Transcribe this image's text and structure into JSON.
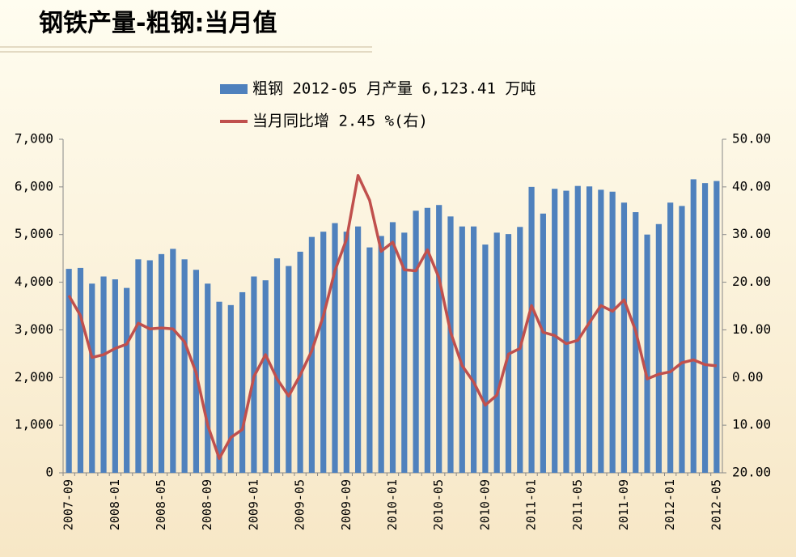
{
  "chart_data": {
    "type": "bar_line",
    "title": "钢铁产量-粗钢:当月值",
    "categories": [
      "2007-09",
      null,
      null,
      null,
      "2008-01",
      null,
      null,
      null,
      "2008-05",
      null,
      null,
      null,
      "2008-09",
      null,
      null,
      null,
      "2009-01",
      null,
      null,
      null,
      "2009-05",
      null,
      null,
      null,
      "2009-09",
      null,
      null,
      null,
      "2010-01",
      null,
      null,
      null,
      "2010-05",
      null,
      null,
      null,
      "2010-09",
      null,
      null,
      null,
      "2011-01",
      null,
      null,
      null,
      "2011-05",
      null,
      null,
      null,
      "2011-09",
      null,
      null,
      null,
      "2012-01",
      null,
      null,
      null,
      "2012-05"
    ],
    "series": [
      {
        "name": "粗钢 2012-05 月产量 6,123.41 万吨",
        "type": "bar",
        "color": "#4f81bd",
        "values": [
          4280,
          4300,
          3970,
          4120,
          4060,
          3880,
          4480,
          4460,
          4590,
          4700,
          4480,
          4260,
          3970,
          3590,
          3520,
          3790,
          4120,
          4040,
          4500,
          4340,
          4640,
          4950,
          5060,
          5240,
          5060,
          5170,
          4730,
          4970,
          5260,
          5040,
          5500,
          5560,
          5620,
          5380,
          5170,
          5170,
          4790,
          5040,
          5010,
          5160,
          6000,
          5440,
          5960,
          5920,
          6020,
          6010,
          5940,
          5900,
          5670,
          5470,
          5000,
          5220,
          5670,
          5600,
          6160,
          6080,
          6123.41
        ]
      },
      {
        "name": "当月同比增 2.45 %(右)",
        "type": "line",
        "axis": "y2",
        "color": "#c0504d",
        "values": [
          17.2,
          13,
          4.2,
          4.8,
          6.1,
          7.0,
          11.4,
          10.2,
          10.4,
          10.2,
          7.5,
          1.0,
          -10,
          -17,
          -12.6,
          -10.9,
          0.2,
          4.8,
          -0.3,
          -3.9,
          0.5,
          5.6,
          12.9,
          22.4,
          29,
          42.4,
          37.2,
          26.5,
          28.4,
          22.6,
          22.4,
          26.8,
          20.9,
          9.5,
          2.5,
          -1,
          -5.8,
          -3.7,
          4.9,
          6.1,
          15.1,
          9.5,
          8.8,
          7.1,
          7.8,
          11.5,
          15.1,
          13.9,
          16.3,
          9.8,
          -0.3,
          0.7,
          1.2,
          3.1,
          3.7,
          2.7,
          2.45
        ]
      }
    ],
    "ylim": [
      0,
      7000
    ],
    "yticks": [
      0,
      {
        "value": 1000,
        "label": "1,000"
      },
      {
        "value": 2000,
        "label": "2,000"
      },
      {
        "value": 3000,
        "label": "3,000"
      },
      {
        "value": 4000,
        "label": "4,000"
      },
      {
        "value": 5000,
        "label": "5,000"
      },
      {
        "value": 6000,
        "label": "6,000"
      },
      {
        "value": 7000,
        "label": "7,000"
      }
    ],
    "y2lim": [
      -20,
      50
    ],
    "y2ticks": [
      {
        "value": -20,
        "label": "20.00"
      },
      {
        "value": -10,
        "label": "10.00"
      },
      {
        "value": 0,
        "label": "0.00"
      },
      {
        "value": 10,
        "label": "10.00"
      },
      {
        "value": 20,
        "label": "20.00"
      },
      {
        "value": 30,
        "label": "30.00"
      },
      {
        "value": 40,
        "label": "40.00"
      },
      {
        "value": 50,
        "label": "50.00"
      }
    ],
    "y2_negative_label_color": "#ff0000",
    "legend": "top"
  }
}
